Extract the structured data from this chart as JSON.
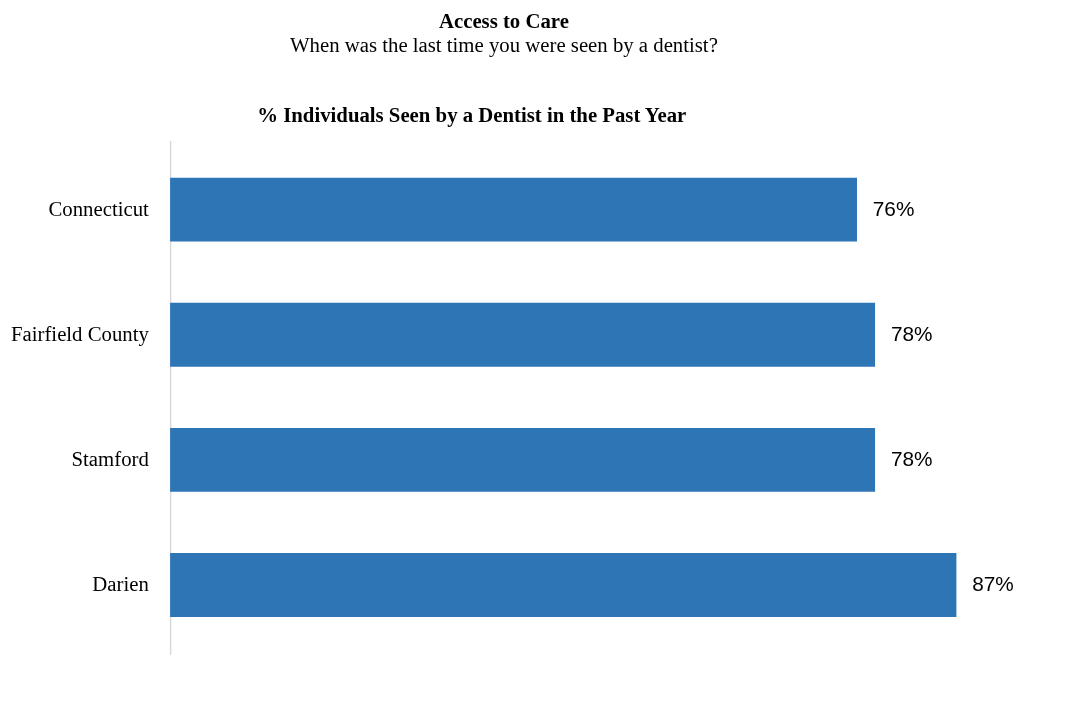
{
  "chart_data": {
    "type": "bar",
    "orientation": "horizontal",
    "title": "Access to Care",
    "subtitle": "When was the last time you were seen by a dentist?",
    "annotations": [
      "% Individuals Seen by a Dentist in the Past Year"
    ],
    "categories": [
      "Connecticut",
      "Fairfield County",
      "Stamford",
      "Darien"
    ],
    "values": [
      76,
      78,
      78,
      87
    ],
    "value_labels": [
      "76%",
      "78%",
      "78%",
      "87%"
    ],
    "color": "#2e75b6",
    "tick_labels": "y"
  }
}
